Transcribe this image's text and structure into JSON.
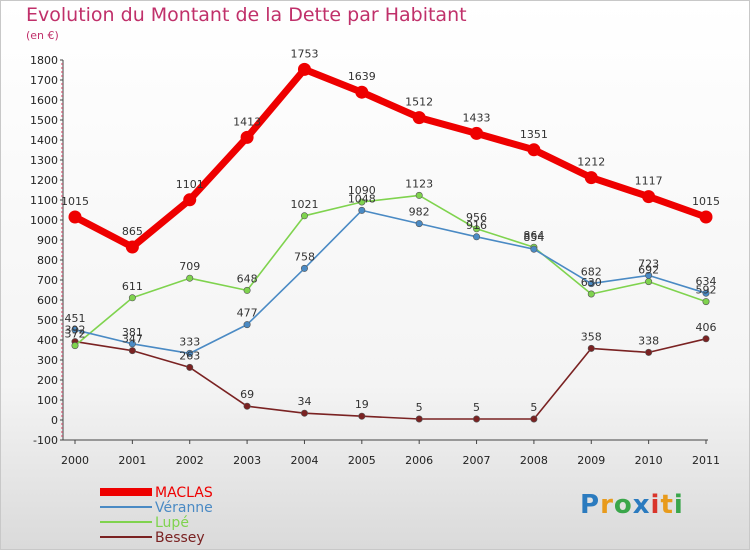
{
  "header": {
    "title": "Evolution du Montant de la Dette par Habitant",
    "subtitle": "(en €)"
  },
  "logo": {
    "text": "Proxiti",
    "letter_colors": [
      "#2b7bbf",
      "#e89b1c",
      "#3aa64a",
      "#2b7bbf",
      "#d9352b",
      "#e89b1c",
      "#3aa64a"
    ]
  },
  "chart_data": {
    "type": "line",
    "title": "Evolution du Montant de la Dette par Habitant",
    "subtitle": "(en €)",
    "xlabel": "",
    "ylabel": "",
    "x": [
      "2000",
      "2001",
      "2002",
      "2003",
      "2004",
      "2005",
      "2006",
      "2007",
      "2008",
      "2009",
      "2010",
      "2011"
    ],
    "ylim": [
      -100,
      1800
    ],
    "yticks": [
      -100,
      0,
      100,
      200,
      300,
      400,
      500,
      600,
      700,
      800,
      900,
      1000,
      1100,
      1200,
      1300,
      1400,
      1500,
      1600,
      1700,
      1800
    ],
    "grid": false,
    "legend_position": "bottom-left",
    "series": [
      {
        "name": "MACLAS",
        "color": "#ee0000",
        "values": [
          1015,
          865,
          1101,
          1413,
          1753,
          1639,
          1512,
          1433,
          1351,
          1212,
          1117,
          1015
        ]
      },
      {
        "name": "Véranne",
        "color": "#4a8ac4",
        "values": [
          451,
          381,
          333,
          477,
          758,
          1048,
          982,
          916,
          854,
          682,
          723,
          634
        ]
      },
      {
        "name": "Lupé",
        "color": "#7fd34e",
        "values": [
          372,
          611,
          709,
          648,
          1021,
          1090,
          1123,
          956,
          864,
          630,
          692,
          592
        ]
      },
      {
        "name": "Bessey",
        "color": "#7a2222",
        "values": [
          392,
          347,
          263,
          69,
          34,
          19,
          5,
          5,
          5,
          358,
          338,
          406
        ]
      }
    ]
  }
}
